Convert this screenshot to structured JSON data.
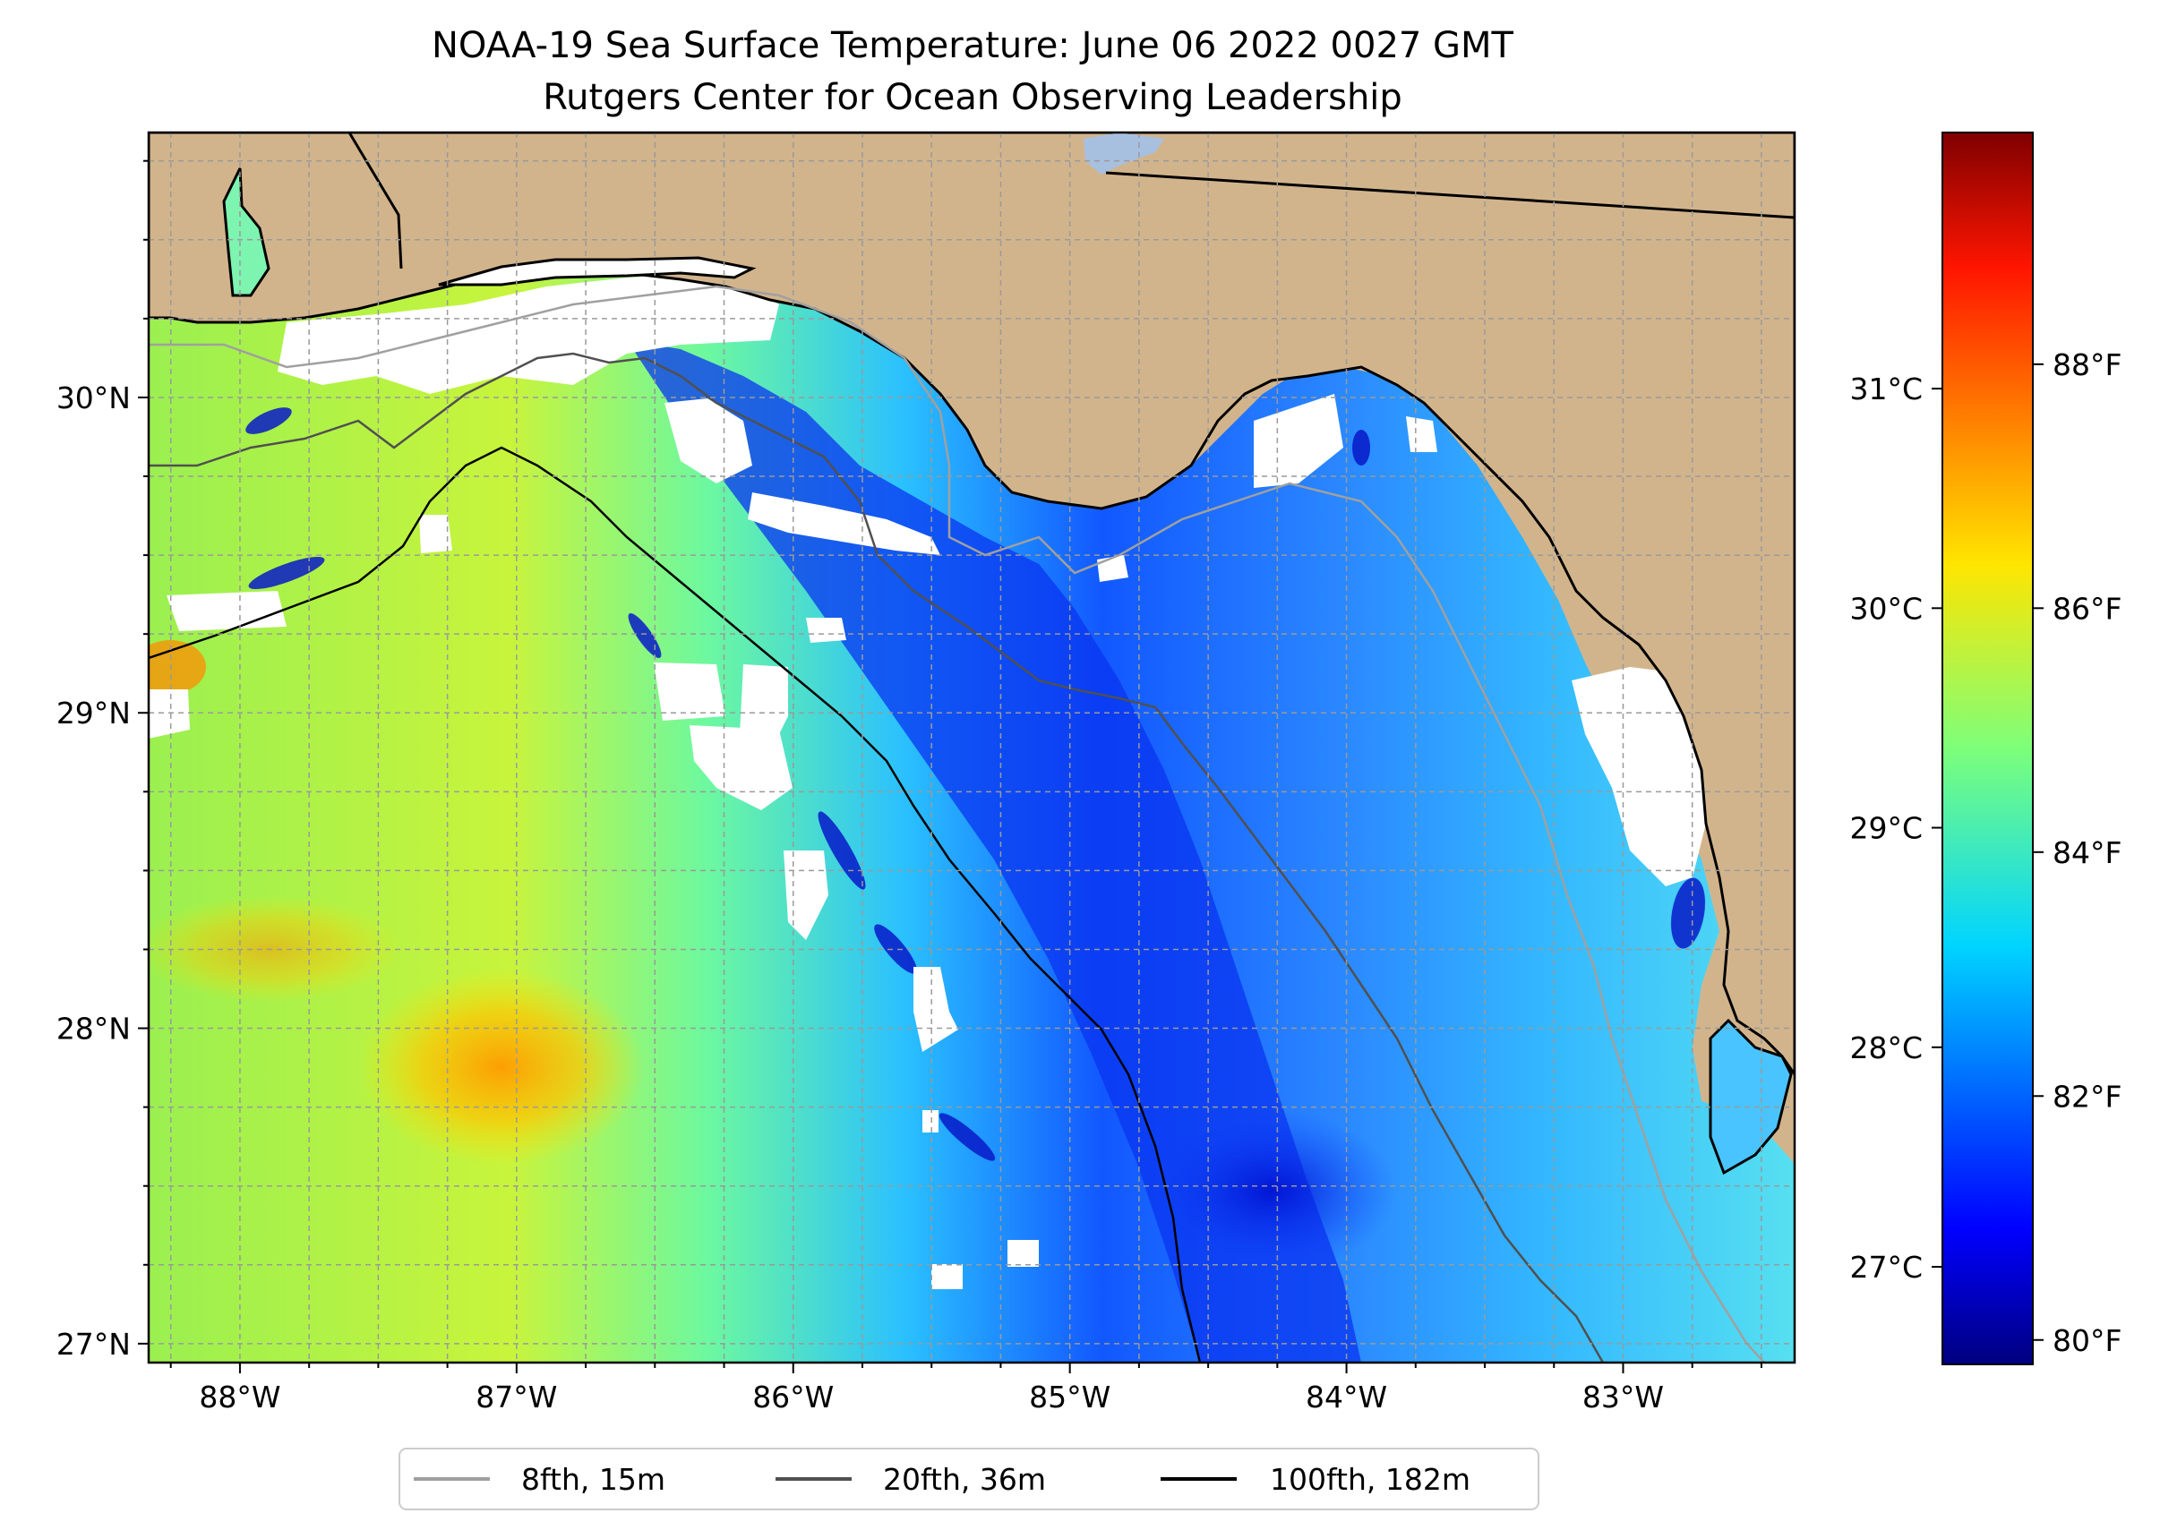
{
  "title": {
    "line1": "NOAA-19 Sea Surface Temperature: June 06 2022 0027 GMT",
    "line2": "Rutgers Center for Ocean Observing Leadership"
  },
  "map": {
    "extent": {
      "lon_min": -88.33,
      "lon_max": -82.38,
      "lat_min": 26.94,
      "lat_max": 30.84
    },
    "lat_ticks": [
      {
        "value": 30,
        "label": "30°N"
      },
      {
        "value": 29,
        "label": "29°N"
      },
      {
        "value": 28,
        "label": "28°N"
      },
      {
        "value": 27,
        "label": "27°N"
      }
    ],
    "lon_ticks": [
      {
        "value": -88,
        "label": "88°W"
      },
      {
        "value": -87,
        "label": "87°W"
      },
      {
        "value": -86,
        "label": "86°W"
      },
      {
        "value": -85,
        "label": "85°W"
      },
      {
        "value": -84,
        "label": "84°W"
      },
      {
        "value": -83,
        "label": "83°W"
      }
    ],
    "colors": {
      "land": "#D2B48C",
      "cloud_mask": "#FFFFFF",
      "coastline": "#000000",
      "lake": "#A8C0E0",
      "grid": "#9A9A9A"
    }
  },
  "colorbar": {
    "colormap": "jet",
    "celsius_ticks": [
      {
        "value": 31,
        "label": "31°C"
      },
      {
        "value": 30,
        "label": "30°C"
      },
      {
        "value": 29,
        "label": "29°C"
      },
      {
        "value": 28,
        "label": "28°C"
      },
      {
        "value": 27,
        "label": "27°C"
      }
    ],
    "fahrenheit_ticks": [
      {
        "value": 88,
        "label": "88°F"
      },
      {
        "value": 86,
        "label": "86°F"
      },
      {
        "value": 84,
        "label": "84°F"
      },
      {
        "value": 82,
        "label": "82°F"
      },
      {
        "value": 80,
        "label": "80°F"
      }
    ],
    "range_f": [
      79.8,
      89.9
    ]
  },
  "legend": {
    "items": [
      {
        "label": "8fth, 15m",
        "color": "#A0A0A0"
      },
      {
        "label": "20fth, 36m",
        "color": "#505050"
      },
      {
        "label": "100fth, 182m",
        "color": "#000000"
      }
    ]
  }
}
